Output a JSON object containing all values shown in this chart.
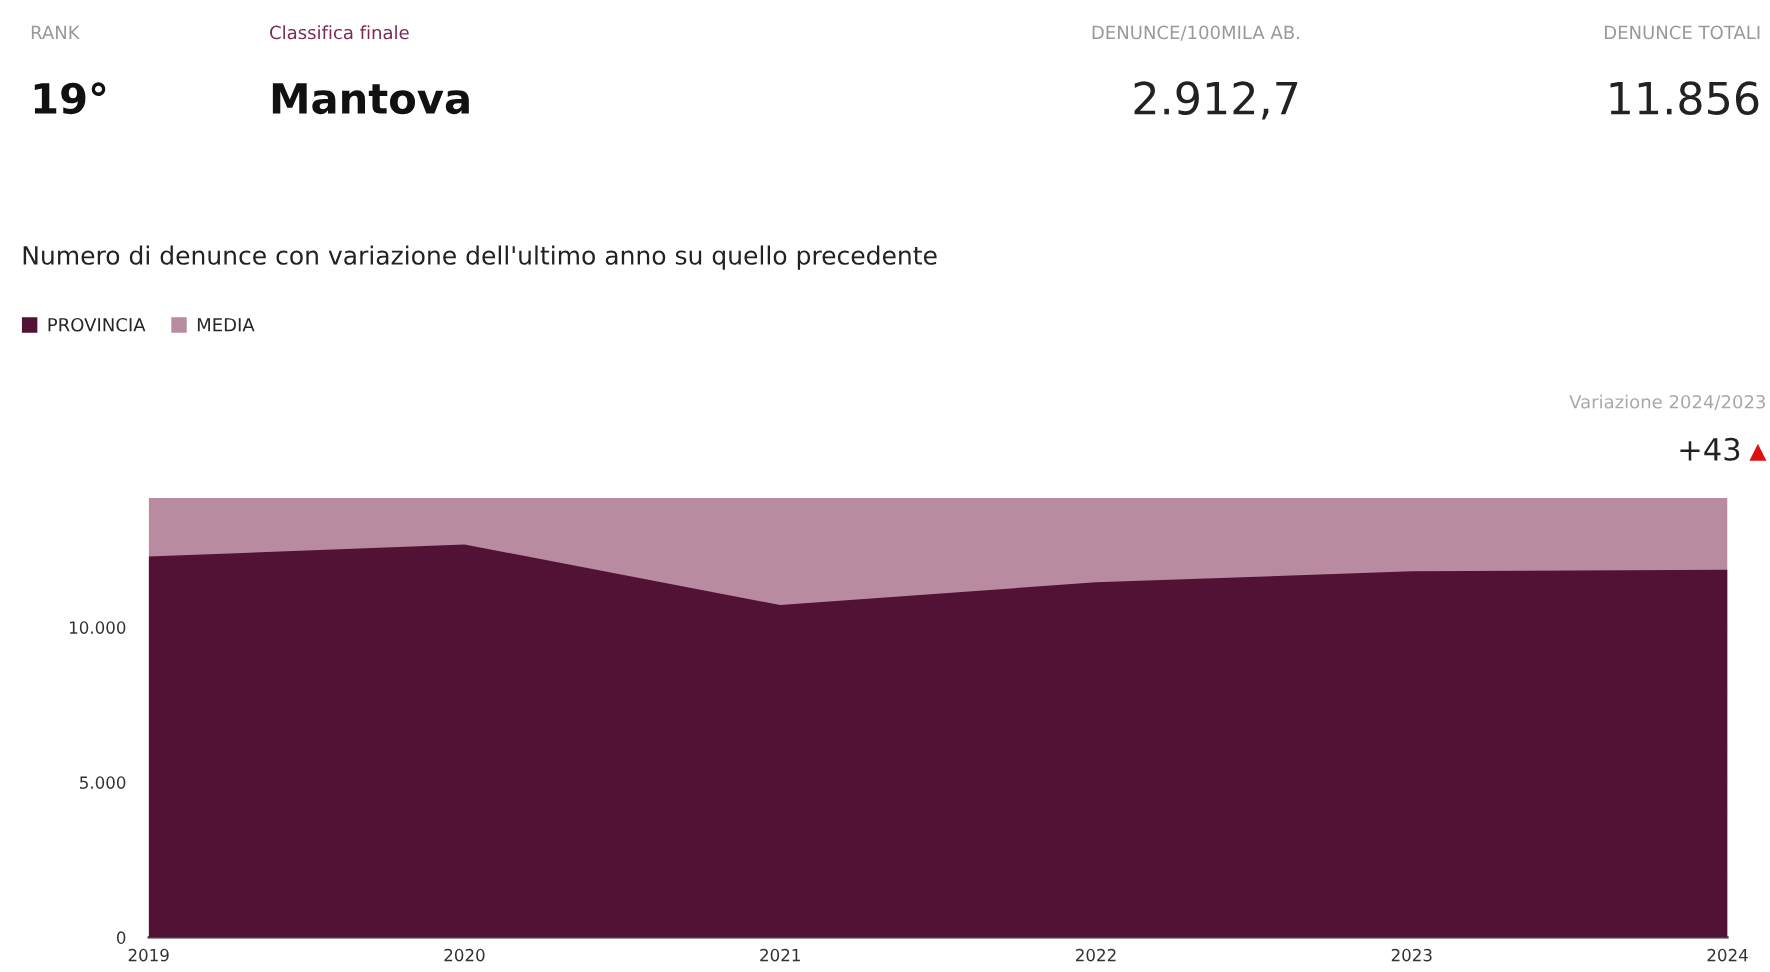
{
  "chart_data": {
    "type": "area",
    "title": "Numero di denunce con variazione dell'ultimo anno su quello precedente",
    "x": [
      2019,
      2020,
      2021,
      2022,
      2023,
      2024
    ],
    "series": [
      {
        "name": "PROVINCIA",
        "color": "#521235",
        "values": [
          12280,
          12670,
          10720,
          11450,
          11810,
          11860
        ]
      },
      {
        "name": "MEDIA",
        "color": "#b88ba0",
        "values": [
          14170,
          14170,
          14170,
          14170,
          14170,
          14170
        ]
      }
    ],
    "xlim": [
      2019,
      2024
    ],
    "xticks": [
      2019,
      2020,
      2021,
      2022,
      2023,
      2024
    ],
    "ylim": [
      0,
      14200
    ],
    "yticks": [
      0,
      {
        "value": 2000,
        "label": null
      },
      {
        "value": 4000,
        "label": null
      },
      {
        "value": 5000,
        "label": "5.000"
      },
      {
        "value": 6000,
        "label": null
      },
      {
        "value": 8000,
        "label": null
      },
      {
        "value": 10000,
        "label": "10.000"
      },
      {
        "value": 12000,
        "label": null
      }
    ],
    "grid": "y",
    "legend": "top left",
    "annotations": [
      "RANK",
      "19°",
      "Classifica finale",
      "Mantova",
      "DENUNCE/100MILA AB.",
      "2.912,7",
      "DENUNCE TOTALI",
      "11.856",
      "Variazione 2024/2023",
      "+43",
      "▲"
    ]
  }
}
